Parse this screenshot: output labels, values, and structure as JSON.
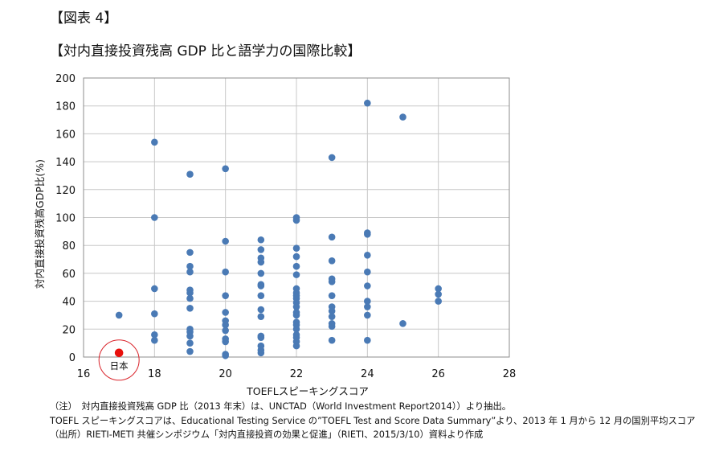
{
  "figure_number": "【図表 4】",
  "figure_title": "【対内直接投資残高 GDP 比と語学力の国際比較】",
  "notes": {
    "note1": "（注）　対内直接投資残高 GDP 比（2013 年末）は、UNCTAD（World Investment Report2014））より抽出。",
    "note2": "TOEFL スピーキングスコアは、Educational Testing Service の”TOEFL Test and Score Data Summary”より、2013 年 1 月から 12 月の国別平均スコア",
    "source": "（出所）RIETI-METI 共催シンポジウム「対内直接投資の効果と促進」（RIETI、2015/3/10）資料より作成"
  },
  "chart_data": {
    "type": "scatter",
    "xlabel": "TOEFLスピーキングスコア",
    "ylabel": "対内直接投資残高GDP比(%)",
    "xlim": [
      16,
      28
    ],
    "ylim": [
      0,
      200
    ],
    "xticks": [
      16,
      18,
      20,
      22,
      24,
      26,
      28
    ],
    "yticks": [
      0,
      20,
      40,
      60,
      80,
      100,
      120,
      140,
      160,
      180,
      200
    ],
    "grid": true,
    "point_color": "#4a7ab5",
    "highlight_color": "#e8100c",
    "circle_color": "#d9232a",
    "highlight": {
      "label": "日本",
      "x": 17,
      "y": 3
    },
    "points": [
      {
        "x": 17,
        "y": 30
      },
      {
        "x": 18,
        "y": 154
      },
      {
        "x": 18,
        "y": 100
      },
      {
        "x": 18,
        "y": 49
      },
      {
        "x": 18,
        "y": 31
      },
      {
        "x": 18,
        "y": 16
      },
      {
        "x": 18,
        "y": 12
      },
      {
        "x": 19,
        "y": 131
      },
      {
        "x": 19,
        "y": 75
      },
      {
        "x": 19,
        "y": 65
      },
      {
        "x": 19,
        "y": 61
      },
      {
        "x": 19,
        "y": 48
      },
      {
        "x": 19,
        "y": 46
      },
      {
        "x": 19,
        "y": 42
      },
      {
        "x": 19,
        "y": 35
      },
      {
        "x": 19,
        "y": 20
      },
      {
        "x": 19,
        "y": 18
      },
      {
        "x": 19,
        "y": 15
      },
      {
        "x": 19,
        "y": 10
      },
      {
        "x": 19,
        "y": 4
      },
      {
        "x": 20,
        "y": 135
      },
      {
        "x": 20,
        "y": 83
      },
      {
        "x": 20,
        "y": 61
      },
      {
        "x": 20,
        "y": 44
      },
      {
        "x": 20,
        "y": 32
      },
      {
        "x": 20,
        "y": 26
      },
      {
        "x": 20,
        "y": 23
      },
      {
        "x": 20,
        "y": 19
      },
      {
        "x": 20,
        "y": 13
      },
      {
        "x": 20,
        "y": 11
      },
      {
        "x": 20,
        "y": 2
      },
      {
        "x": 20,
        "y": 1
      },
      {
        "x": 21,
        "y": 84
      },
      {
        "x": 21,
        "y": 77
      },
      {
        "x": 21,
        "y": 71
      },
      {
        "x": 21,
        "y": 68
      },
      {
        "x": 21,
        "y": 60
      },
      {
        "x": 21,
        "y": 52
      },
      {
        "x": 21,
        "y": 51
      },
      {
        "x": 21,
        "y": 44
      },
      {
        "x": 21,
        "y": 34
      },
      {
        "x": 21,
        "y": 29
      },
      {
        "x": 21,
        "y": 15
      },
      {
        "x": 21,
        "y": 14
      },
      {
        "x": 21,
        "y": 8
      },
      {
        "x": 21,
        "y": 5
      },
      {
        "x": 21,
        "y": 3
      },
      {
        "x": 22,
        "y": 100
      },
      {
        "x": 22,
        "y": 98
      },
      {
        "x": 22,
        "y": 78
      },
      {
        "x": 22,
        "y": 72
      },
      {
        "x": 22,
        "y": 65
      },
      {
        "x": 22,
        "y": 59
      },
      {
        "x": 22,
        "y": 49
      },
      {
        "x": 22,
        "y": 46
      },
      {
        "x": 22,
        "y": 44
      },
      {
        "x": 22,
        "y": 42
      },
      {
        "x": 22,
        "y": 39
      },
      {
        "x": 22,
        "y": 36
      },
      {
        "x": 22,
        "y": 32
      },
      {
        "x": 22,
        "y": 30
      },
      {
        "x": 22,
        "y": 25
      },
      {
        "x": 22,
        "y": 23
      },
      {
        "x": 22,
        "y": 20
      },
      {
        "x": 22,
        "y": 16
      },
      {
        "x": 22,
        "y": 14
      },
      {
        "x": 22,
        "y": 11
      },
      {
        "x": 22,
        "y": 8
      },
      {
        "x": 23,
        "y": 143
      },
      {
        "x": 23,
        "y": 86
      },
      {
        "x": 23,
        "y": 69
      },
      {
        "x": 23,
        "y": 56
      },
      {
        "x": 23,
        "y": 54
      },
      {
        "x": 23,
        "y": 44
      },
      {
        "x": 23,
        "y": 36
      },
      {
        "x": 23,
        "y": 33
      },
      {
        "x": 23,
        "y": 29
      },
      {
        "x": 23,
        "y": 24
      },
      {
        "x": 23,
        "y": 22
      },
      {
        "x": 23,
        "y": 12
      },
      {
        "x": 24,
        "y": 182
      },
      {
        "x": 24,
        "y": 89
      },
      {
        "x": 24,
        "y": 88
      },
      {
        "x": 24,
        "y": 73
      },
      {
        "x": 24,
        "y": 61
      },
      {
        "x": 24,
        "y": 51
      },
      {
        "x": 24,
        "y": 40
      },
      {
        "x": 24,
        "y": 36
      },
      {
        "x": 24,
        "y": 30
      },
      {
        "x": 24,
        "y": 12
      },
      {
        "x": 25,
        "y": 172
      },
      {
        "x": 25,
        "y": 24
      },
      {
        "x": 26,
        "y": 49
      },
      {
        "x": 26,
        "y": 45
      },
      {
        "x": 26,
        "y": 40
      }
    ]
  }
}
